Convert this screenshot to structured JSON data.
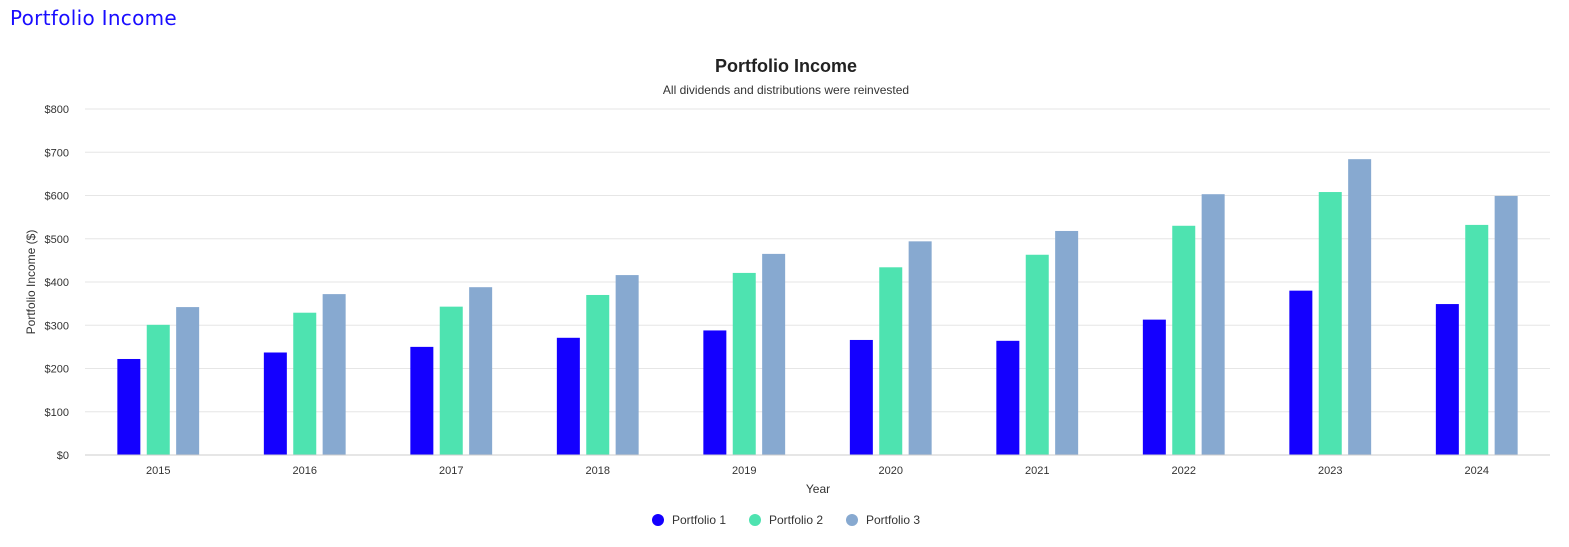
{
  "page": {
    "heading": "Portfolio Income"
  },
  "chart_data": {
    "type": "bar",
    "title": "Portfolio Income",
    "subtitle": "All dividends and distributions were reinvested",
    "xlabel": "Year",
    "ylabel": "Portfolio Income ($)",
    "ylim": [
      0,
      800
    ],
    "yticks": [
      0,
      100,
      200,
      300,
      400,
      500,
      600,
      700,
      800
    ],
    "ytick_labels": [
      "$0",
      "$100",
      "$200",
      "$300",
      "$400",
      "$500",
      "$600",
      "$700",
      "$800"
    ],
    "grid": true,
    "legend_position": "bottom-center",
    "categories": [
      "2015",
      "2016",
      "2017",
      "2018",
      "2019",
      "2020",
      "2021",
      "2022",
      "2023",
      "2024"
    ],
    "series": [
      {
        "name": "Portfolio 1",
        "color": "#1400ff",
        "values": [
          222,
          237,
          250,
          271,
          288,
          266,
          264,
          313,
          380,
          349
        ]
      },
      {
        "name": "Portfolio 2",
        "color": "#4ee3b0",
        "values": [
          301,
          329,
          343,
          370,
          421,
          434,
          463,
          530,
          608,
          532
        ]
      },
      {
        "name": "Portfolio 3",
        "color": "#87a9d0",
        "values": [
          342,
          372,
          388,
          416,
          465,
          494,
          518,
          603,
          684,
          599
        ]
      }
    ]
  }
}
